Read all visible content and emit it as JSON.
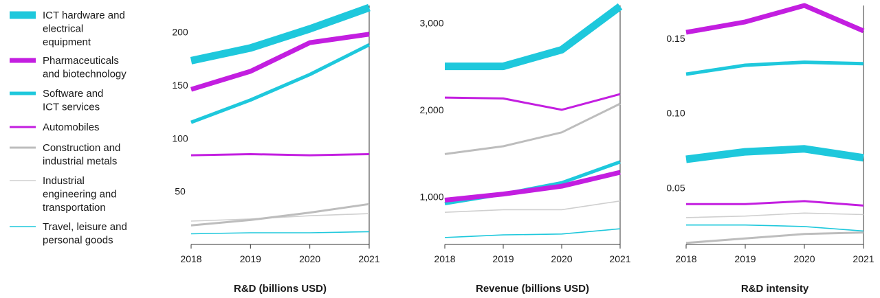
{
  "chart_data": {
    "type": "line",
    "x": [
      "2018",
      "2019",
      "2020",
      "2021"
    ],
    "legend": {
      "placement": "left",
      "entries": [
        {
          "lines": [
            "ICT hardware and",
            "electrical",
            "equipment"
          ],
          "series": "ict_hw"
        },
        {
          "lines": [
            "Pharmaceuticals",
            "and biotechnology"
          ],
          "series": "pharma"
        },
        {
          "lines": [
            "Software and",
            "ICT services"
          ],
          "series": "software"
        },
        {
          "lines": [
            "Automobiles"
          ],
          "series": "auto"
        },
        {
          "lines": [
            "Construction and",
            "industrial metals"
          ],
          "series": "construction"
        },
        {
          "lines": [
            "Industrial",
            "engineering and",
            "transportation"
          ],
          "series": "industrial"
        },
        {
          "lines": [
            "Travel, leisure and",
            "personal goods"
          ],
          "series": "travel"
        }
      ]
    },
    "series_styles": {
      "ict_hw": {
        "color": "#1ec8dc",
        "weight": "heavy"
      },
      "pharma": {
        "color": "#c31ee0",
        "weight": "bold"
      },
      "software": {
        "color": "#1ec8dc",
        "weight": "medium"
      },
      "auto": {
        "color": "#c31ee0",
        "weight": "thin"
      },
      "construction": {
        "color": "#bdbdbd",
        "weight": "thin"
      },
      "industrial": {
        "color": "#cfcfcf",
        "weight": "hair"
      },
      "travel": {
        "color": "#1ec8dc",
        "weight": "hair"
      }
    },
    "panels": [
      {
        "xlabel": "R&D (billions USD)",
        "ylim": [
          0,
          225
        ],
        "yticks": [
          50,
          100,
          150,
          200
        ],
        "ytick_labels": [
          "50",
          "100",
          "150",
          "200"
        ],
        "series": {
          "ict_hw": [
            173,
            185,
            203,
            223
          ],
          "pharma": [
            146,
            163,
            190,
            198
          ],
          "software": [
            115,
            136,
            160,
            188
          ],
          "auto": [
            84,
            85,
            84,
            85
          ],
          "construction": [
            18,
            23,
            30,
            38
          ],
          "industrial": [
            22,
            24,
            27,
            29
          ],
          "travel": [
            10,
            11,
            11,
            12
          ]
        }
      },
      {
        "xlabel": "Revenue (billions USD)",
        "ylim": [
          450,
          3200
        ],
        "yticks": [
          1000,
          2000,
          3000
        ],
        "ytick_labels": [
          "1,000",
          "2,000",
          "3,000"
        ],
        "series": {
          "ict_hw": [
            2500,
            2500,
            2690,
            3190
          ],
          "pharma": [
            960,
            1030,
            1120,
            1280
          ],
          "software": [
            920,
            1030,
            1160,
            1400
          ],
          "auto": [
            2140,
            2130,
            2000,
            2180
          ],
          "construction": [
            1490,
            1580,
            1740,
            2070
          ],
          "industrial": [
            820,
            850,
            850,
            950
          ],
          "travel": [
            530,
            560,
            570,
            630
          ]
        }
      },
      {
        "xlabel": "R&D intensity",
        "ylim": [
          0.012,
          0.172
        ],
        "yticks": [
          0.05,
          0.1,
          0.15
        ],
        "ytick_labels": [
          "0.05",
          "0.10",
          "0.15"
        ],
        "series": {
          "ict_hw": [
            0.069,
            0.074,
            0.076,
            0.07
          ],
          "pharma": [
            0.154,
            0.161,
            0.172,
            0.155
          ],
          "software": [
            0.126,
            0.132,
            0.134,
            0.133
          ],
          "auto": [
            0.039,
            0.039,
            0.041,
            0.038
          ],
          "construction": [
            0.013,
            0.016,
            0.019,
            0.02
          ],
          "industrial": [
            0.03,
            0.031,
            0.033,
            0.032
          ],
          "travel": [
            0.025,
            0.025,
            0.024,
            0.021
          ]
        }
      }
    ]
  }
}
